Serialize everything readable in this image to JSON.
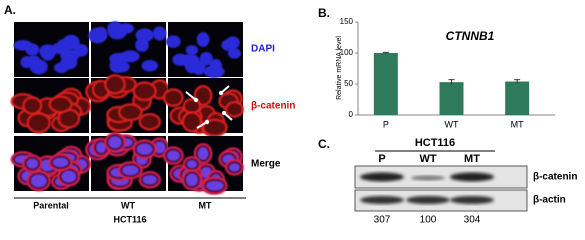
{
  "panel_a": {
    "label": "A.",
    "channels": [
      "DAPI",
      "β-catenin",
      "Merge"
    ],
    "columns": [
      "Parental",
      "WT",
      "MT"
    ],
    "group": "HCT116"
  },
  "chart_data": {
    "type": "bar",
    "label": "B.",
    "title": "CTNNB1",
    "y_label": "Relative mRNA level",
    "categories": [
      "P",
      "WT",
      "MT"
    ],
    "values": [
      100,
      53,
      54
    ],
    "errors": [
      1,
      4,
      3
    ],
    "color": "#2f7a5c",
    "ylim": [
      0,
      150
    ],
    "yticks": [
      0,
      50,
      100,
      150
    ]
  },
  "panel_c": {
    "label": "C.",
    "group": "HCT116",
    "lanes": [
      "P",
      "WT",
      "MT"
    ],
    "bands": [
      "β-catenin",
      "β-actin"
    ],
    "quantification": [
      307,
      100,
      304
    ]
  }
}
